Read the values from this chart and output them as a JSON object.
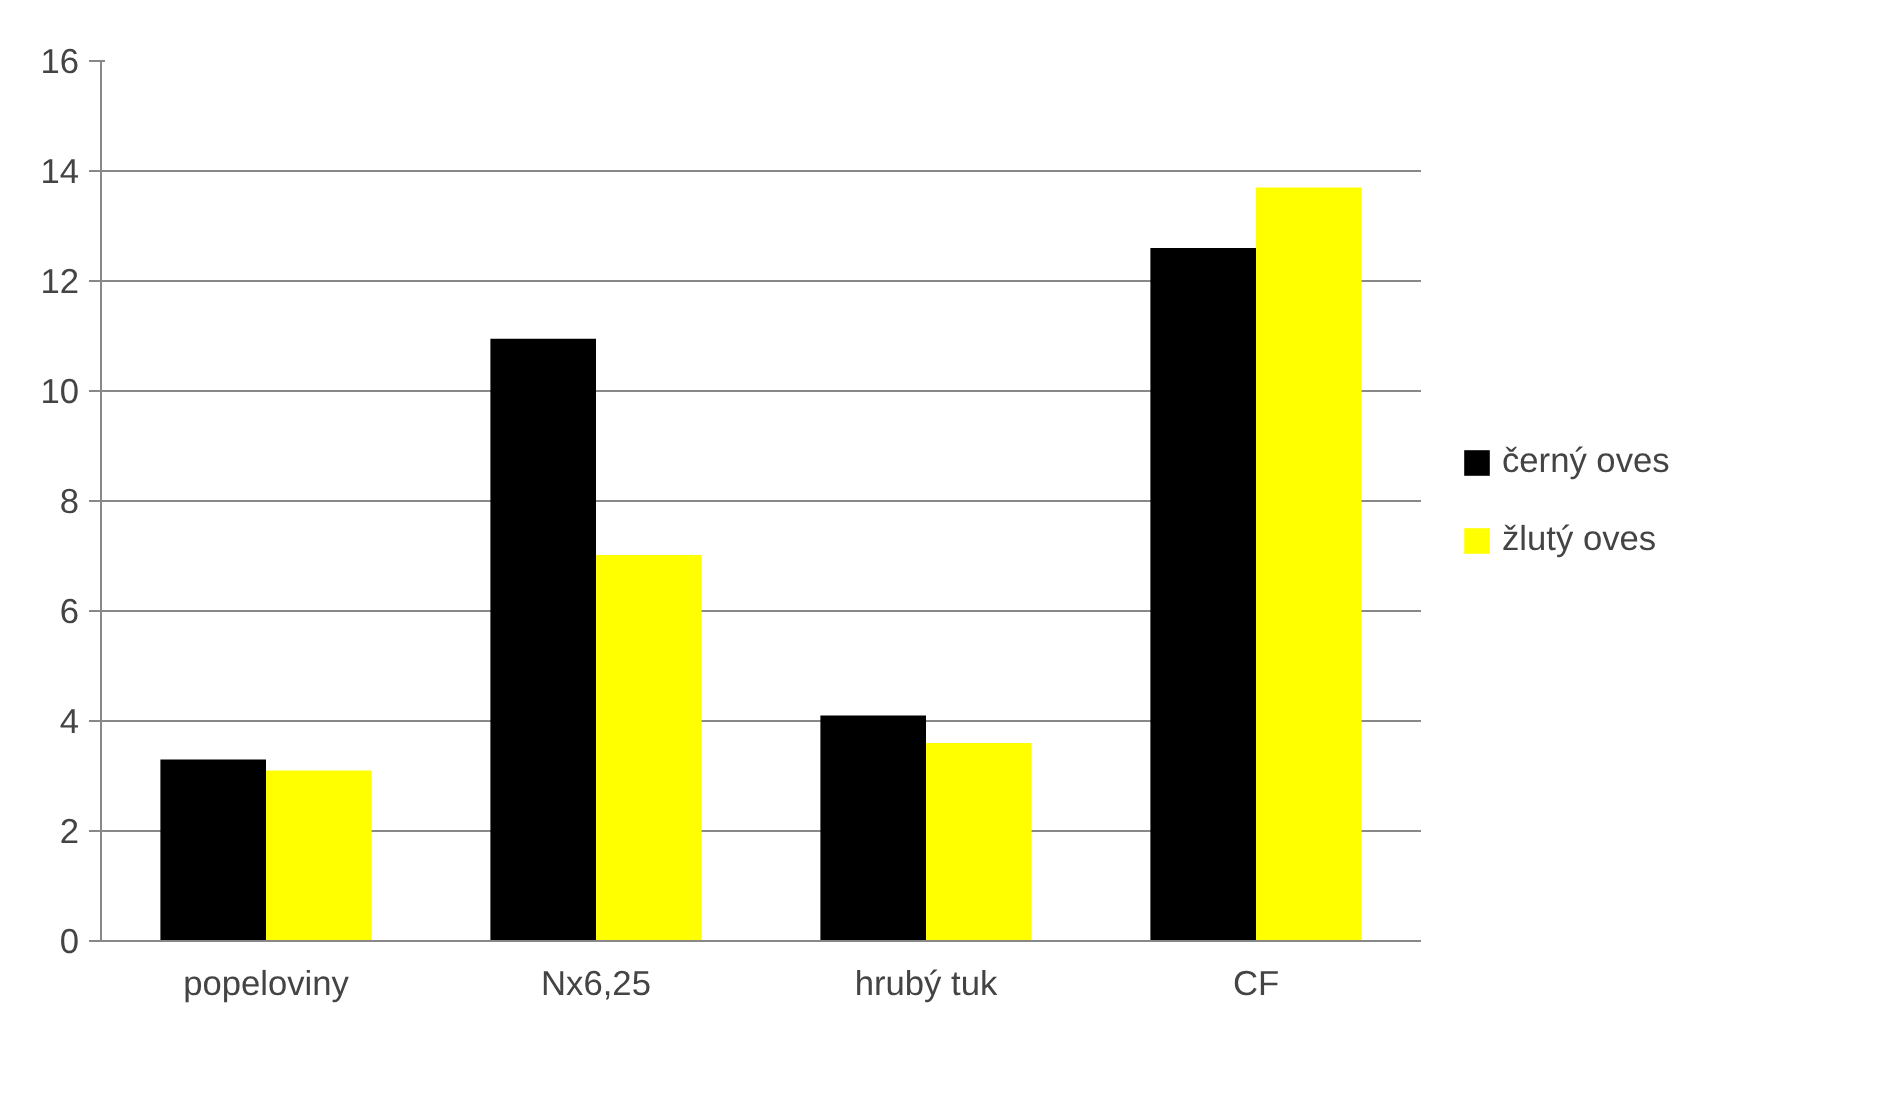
{
  "chart_data": {
    "type": "bar",
    "categories": [
      "popeloviny",
      "Nx6,25",
      "hrubý tuk",
      "CF"
    ],
    "series": [
      {
        "name": "černý oves",
        "color": "#000000",
        "values": [
          3.3,
          10.95,
          4.1,
          12.6
        ]
      },
      {
        "name": "žlutý oves",
        "color": "#ffff00",
        "values": [
          3.1,
          7.02,
          3.6,
          13.7
        ]
      }
    ],
    "ylim": [
      0,
      16
    ],
    "yticks": [
      0,
      2,
      4,
      6,
      8,
      10,
      12,
      14,
      16
    ],
    "grid": "y",
    "legend": "right"
  }
}
